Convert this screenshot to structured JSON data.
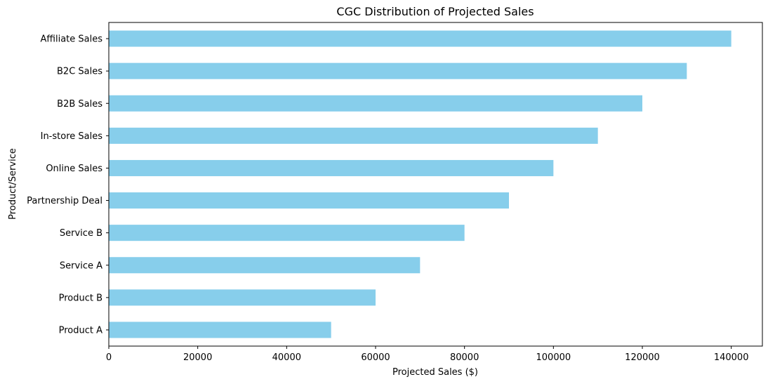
{
  "chart_data": {
    "type": "bar",
    "orientation": "horizontal",
    "title": "CGC Distribution of Projected Sales",
    "xlabel": "Projected Sales ($)",
    "ylabel": "Product/Service",
    "categories": [
      "Product A",
      "Product B",
      "Service A",
      "Service B",
      "Partnership Deal",
      "Online Sales",
      "In-store Sales",
      "B2B Sales",
      "B2C Sales",
      "Affiliate Sales"
    ],
    "values": [
      50000,
      60000,
      70000,
      80000,
      90000,
      100000,
      110000,
      120000,
      130000,
      140000
    ],
    "xlim": [
      0,
      147000
    ],
    "xticks": [
      "0",
      "20000",
      "40000",
      "60000",
      "80000",
      "100000",
      "120000",
      "140000"
    ],
    "bar_color": "#87CEEB",
    "grid": false,
    "legend": "none"
  }
}
